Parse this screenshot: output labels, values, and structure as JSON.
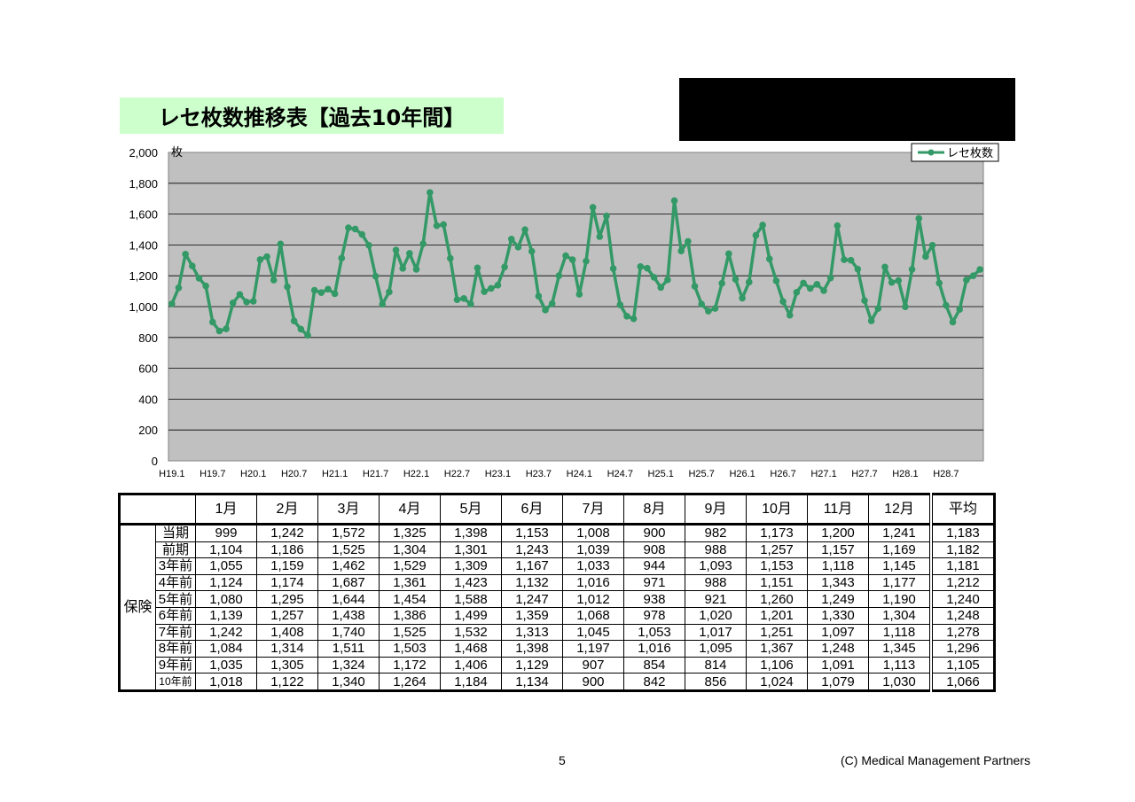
{
  "title": "レセ枚数推移表【過去10年間】",
  "page_number": "5",
  "copyright": "(C) Medical Management Partners",
  "chart_data": {
    "type": "line",
    "y_unit": "枚",
    "ylim": [
      0,
      2000
    ],
    "y_ticks": [
      "0",
      "200",
      "400",
      "600",
      "800",
      "1,000",
      "1,200",
      "1,400",
      "1,600",
      "1,800",
      "2,000"
    ],
    "x_tick_labels": [
      "H19.1",
      "H19.7",
      "H20.1",
      "H20.7",
      "H21.1",
      "H21.7",
      "H22.1",
      "H22.7",
      "H23.1",
      "H23.7",
      "H24.1",
      "H24.7",
      "H25.1",
      "H25.7",
      "H26.1",
      "H26.7",
      "H27.1",
      "H27.7",
      "H28.1",
      "H28.7"
    ],
    "legend_position": "top-right",
    "grid": true,
    "plot_background": "#c0c0c0",
    "series": [
      {
        "name": "レセ枚数",
        "color": "#339966",
        "values": [
          1018,
          1122,
          1340,
          1264,
          1184,
          1134,
          900,
          842,
          856,
          1024,
          1079,
          1030,
          1035,
          1305,
          1324,
          1172,
          1406,
          1129,
          907,
          854,
          814,
          1106,
          1091,
          1113,
          1084,
          1314,
          1511,
          1503,
          1468,
          1398,
          1197,
          1016,
          1095,
          1367,
          1248,
          1345,
          1242,
          1408,
          1740,
          1525,
          1532,
          1313,
          1045,
          1053,
          1017,
          1251,
          1097,
          1118,
          1139,
          1257,
          1438,
          1386,
          1499,
          1359,
          1068,
          978,
          1020,
          1201,
          1330,
          1304,
          1080,
          1295,
          1644,
          1454,
          1588,
          1247,
          1012,
          938,
          921,
          1260,
          1249,
          1190,
          1124,
          1174,
          1687,
          1361,
          1423,
          1132,
          1016,
          971,
          988,
          1151,
          1343,
          1177,
          1055,
          1159,
          1462,
          1529,
          1309,
          1167,
          1033,
          944,
          1093,
          1153,
          1118,
          1145,
          1104,
          1186,
          1525,
          1304,
          1301,
          1243,
          1039,
          908,
          988,
          1257,
          1157,
          1169,
          999,
          1242,
          1572,
          1325,
          1398,
          1153,
          1008,
          900,
          982,
          1173,
          1200,
          1241
        ]
      }
    ]
  },
  "table": {
    "group_label": "保険",
    "headers": [
      "1月",
      "2月",
      "3月",
      "4月",
      "5月",
      "6月",
      "7月",
      "8月",
      "9月",
      "10月",
      "11月",
      "12月",
      "平均"
    ],
    "rows": [
      {
        "label": "当期",
        "values": [
          "999",
          "1,242",
          "1,572",
          "1,325",
          "1,398",
          "1,153",
          "1,008",
          "900",
          "982",
          "1,173",
          "1,200",
          "1,241",
          "1,183"
        ]
      },
      {
        "label": "前期",
        "values": [
          "1,104",
          "1,186",
          "1,525",
          "1,304",
          "1,301",
          "1,243",
          "1,039",
          "908",
          "988",
          "1,257",
          "1,157",
          "1,169",
          "1,182"
        ]
      },
      {
        "label": "3年前",
        "values": [
          "1,055",
          "1,159",
          "1,462",
          "1,529",
          "1,309",
          "1,167",
          "1,033",
          "944",
          "1,093",
          "1,153",
          "1,118",
          "1,145",
          "1,181"
        ]
      },
      {
        "label": "4年前",
        "values": [
          "1,124",
          "1,174",
          "1,687",
          "1,361",
          "1,423",
          "1,132",
          "1,016",
          "971",
          "988",
          "1,151",
          "1,343",
          "1,177",
          "1,212"
        ]
      },
      {
        "label": "5年前",
        "values": [
          "1,080",
          "1,295",
          "1,644",
          "1,454",
          "1,588",
          "1,247",
          "1,012",
          "938",
          "921",
          "1,260",
          "1,249",
          "1,190",
          "1,240"
        ]
      },
      {
        "label": "6年前",
        "values": [
          "1,139",
          "1,257",
          "1,438",
          "1,386",
          "1,499",
          "1,359",
          "1,068",
          "978",
          "1,020",
          "1,201",
          "1,330",
          "1,304",
          "1,248"
        ]
      },
      {
        "label": "7年前",
        "values": [
          "1,242",
          "1,408",
          "1,740",
          "1,525",
          "1,532",
          "1,313",
          "1,045",
          "1,053",
          "1,017",
          "1,251",
          "1,097",
          "1,118",
          "1,278"
        ]
      },
      {
        "label": "8年前",
        "values": [
          "1,084",
          "1,314",
          "1,511",
          "1,503",
          "1,468",
          "1,398",
          "1,197",
          "1,016",
          "1,095",
          "1,367",
          "1,248",
          "1,345",
          "1,296"
        ]
      },
      {
        "label": "9年前",
        "values": [
          "1,035",
          "1,305",
          "1,324",
          "1,172",
          "1,406",
          "1,129",
          "907",
          "854",
          "814",
          "1,106",
          "1,091",
          "1,113",
          "1,105"
        ]
      },
      {
        "label": "10年前",
        "values": [
          "1,018",
          "1,122",
          "1,340",
          "1,264",
          "1,184",
          "1,134",
          "900",
          "842",
          "856",
          "1,024",
          "1,079",
          "1,030",
          "1,066"
        ]
      }
    ]
  }
}
